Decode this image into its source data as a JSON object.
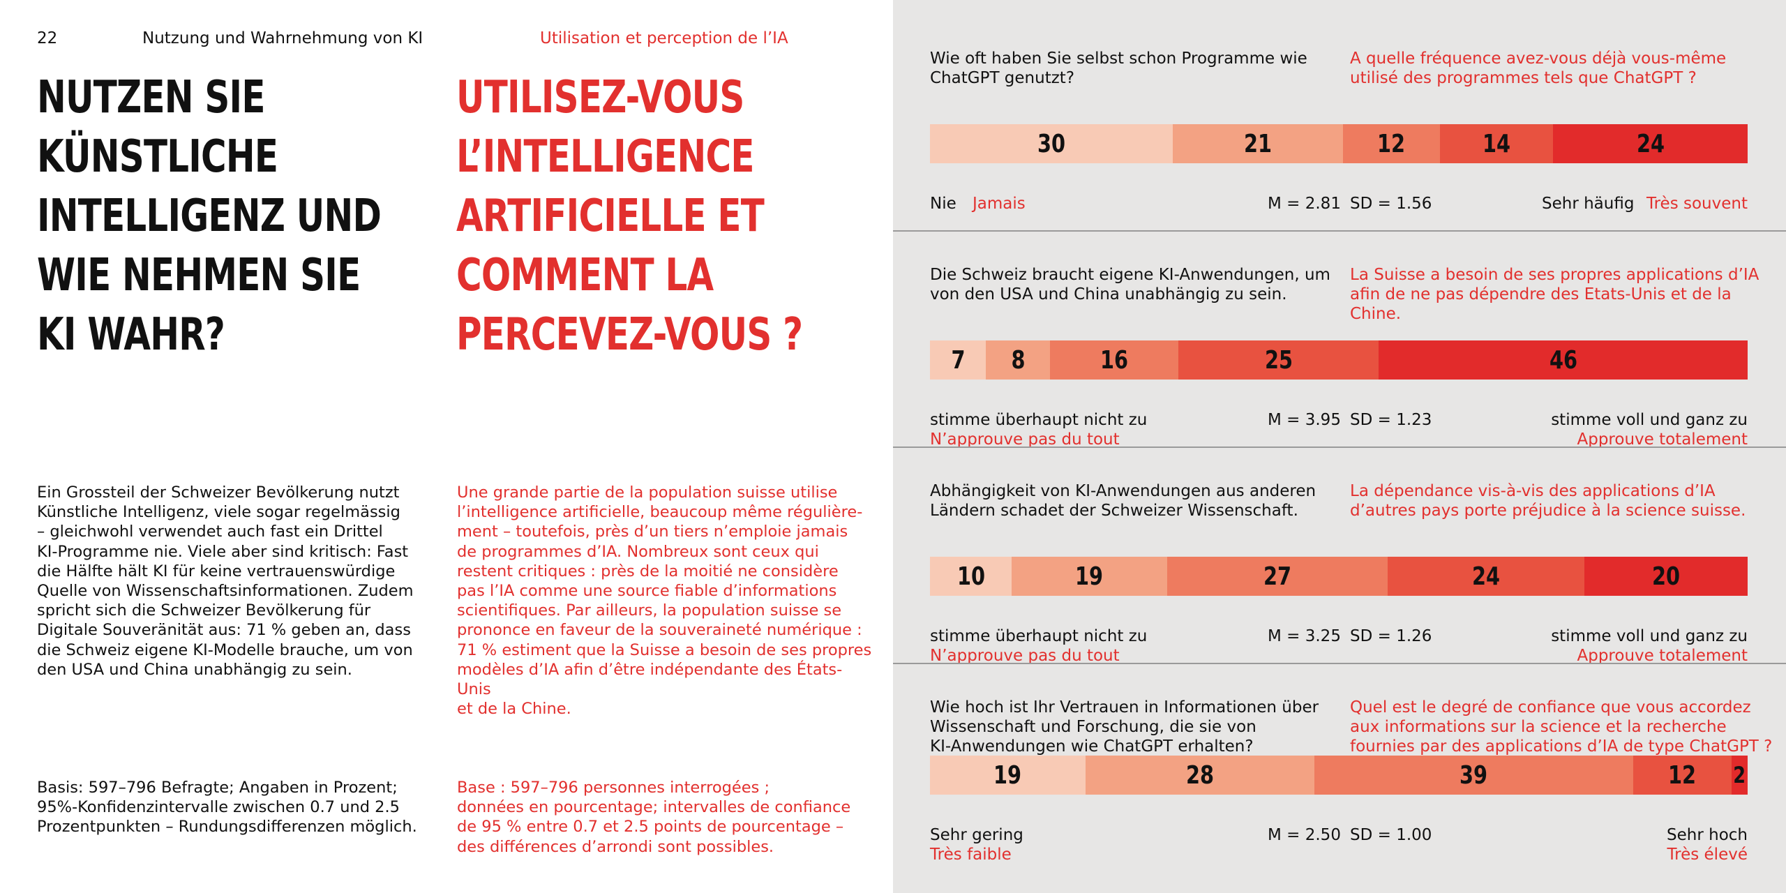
{
  "header": {
    "page_number": "22",
    "section_de": "Nutzung und Wahrnehmung von KI",
    "section_fr": "Utilisation et perception de l’IA"
  },
  "title_de": [
    "Nutzen Sie",
    "künstliche",
    "Intelligenz und",
    "wie nehmen Sie",
    "KI wahr?"
  ],
  "title_fr": [
    "Utilisez-vous",
    "l’intelligence",
    "artificielle et",
    "comment la",
    "percevez-vous ?"
  ],
  "body_de": [
    "Ein Grossteil der Schweizer Bevölkerung nutzt",
    "Künstliche Intelligenz, viele sogar regelmässig",
    "– gleichwohl verwendet auch fast ein Drittel",
    "KI-Programme nie. Viele aber sind kritisch: Fast",
    "die Hälfte hält KI für keine vertrauenswürdige",
    "Quelle von Wissenschaftsinformationen. Zudem",
    "spricht sich die Schweizer Bevölkerung für",
    "Digitale Souveränität aus: 71 % geben an, dass",
    "die Schweiz eigene KI-Modelle brauche, um von",
    "den USA und China unabhängig zu sein."
  ],
  "body_fr": [
    "Une grande partie de la population suisse utilise",
    "l’intelligence artificielle, beaucoup même régulière-",
    "ment – toutefois, près d’un tiers n’emploie jamais",
    "de programmes d’IA. Nombreux sont ceux qui",
    "restent critiques : près de la moitié ne considère",
    "pas l’IA comme une source fiable d’informations",
    "scientifiques. Par ailleurs, la population suisse se",
    "prononce en faveur de la souveraineté numérique :",
    "71 % estiment que la Suisse a besoin de ses propres",
    "modèles d’IA afin d’être indépendante des États-Unis",
    "et de la Chine."
  ],
  "basis_de": [
    "Basis: 597–796 Befragte; Angaben in Prozent;",
    "95%-Konfidenzintervalle zwischen 0.7 und 2.5",
    "Prozentpunkten – Rundungsdifferenzen möglich."
  ],
  "basis_fr": [
    "Base : 597–796 personnes interrogées ;",
    "données en pourcentage; intervalles de confiance",
    "de 95 % entre 0.7 et 2.5 points de pourcentage –",
    "des différences d’arrondi sont possibles."
  ],
  "colors": [
    "#f8cab5",
    "#f3a283",
    "#ee7b5f",
    "#e85240",
    "#e22b2b"
  ],
  "chart_data": [
    {
      "type": "bar",
      "stacked": true,
      "question_de": [
        "Wie oft haben Sie selbst schon Programme wie",
        "ChatGPT genutzt?"
      ],
      "question_fr": [
        "A quelle fréquence avez-vous déjà vous-même",
        "utilisé des programmes tels que ChatGPT ?"
      ],
      "values": [
        30,
        21,
        12,
        14,
        24
      ],
      "low_de": "Nie",
      "low_fr": "Jamais",
      "high_de": "Sehr häufig",
      "high_fr": "Très souvent",
      "mean": "M = 2.81",
      "sd": "SD = 1.56"
    },
    {
      "type": "bar",
      "stacked": true,
      "question_de": [
        "Die Schweiz braucht eigene KI-Anwendungen, um",
        "von den USA und China unabhängig zu sein."
      ],
      "question_fr": [
        "La Suisse a besoin de ses propres applications d’IA",
        "afin de ne pas dépendre des Etats-Unis et de la Chine."
      ],
      "values": [
        7,
        8,
        16,
        25,
        46
      ],
      "low_de": "stimme überhaupt nicht zu",
      "low_fr": "N’approuve pas du tout",
      "high_de": "stimme voll und ganz zu",
      "high_fr": "Approuve totalement",
      "mean": "M = 3.95",
      "sd": "SD = 1.23"
    },
    {
      "type": "bar",
      "stacked": true,
      "question_de": [
        "Abhängigkeit von KI-Anwendungen aus anderen",
        "Ländern schadet der Schweizer Wissenschaft."
      ],
      "question_fr": [
        "La dépendance vis-à-vis des applications d’IA",
        "d’autres pays porte préjudice à la science suisse."
      ],
      "values": [
        10,
        19,
        27,
        24,
        20
      ],
      "low_de": "stimme überhaupt nicht zu",
      "low_fr": "N’approuve pas du tout",
      "high_de": "stimme voll und ganz zu",
      "high_fr": "Approuve totalement",
      "mean": "M = 3.25",
      "sd": "SD = 1.26"
    },
    {
      "type": "bar",
      "stacked": true,
      "question_de": [
        "Wie hoch ist Ihr Vertrauen in Informationen über",
        "Wissenschaft und Forschung, die sie von",
        "KI-Anwendungen wie ChatGPT erhalten?"
      ],
      "question_fr": [
        "Quel est le degré de confiance que vous accordez",
        "aux informations sur la science et la recherche",
        "fournies par des applications d’IA de type ChatGPT ?"
      ],
      "values": [
        19,
        28,
        39,
        12,
        2
      ],
      "low_de": "Sehr gering",
      "low_fr": "Très faible",
      "high_de": "Sehr hoch",
      "high_fr": "Très élevé",
      "mean": "M = 2.50",
      "sd": "SD = 1.00"
    }
  ]
}
